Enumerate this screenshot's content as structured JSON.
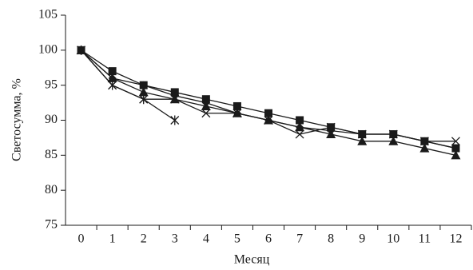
{
  "chart_data": {
    "type": "line",
    "categories": [
      "0",
      "1",
      "2",
      "3",
      "4",
      "5",
      "6",
      "7",
      "8",
      "9",
      "10",
      "11",
      "12"
    ],
    "series": [
      {
        "marker": "square",
        "color": "#1a1a1a",
        "values": [
          100,
          97,
          95,
          94,
          93,
          92,
          91,
          90,
          89,
          88,
          88,
          87,
          86
        ]
      },
      {
        "marker": "triangle",
        "color": "#1a1a1a",
        "values": [
          100,
          96,
          94,
          93,
          92,
          91,
          90,
          89,
          88,
          87,
          87,
          86,
          85
        ]
      },
      {
        "marker": "diamond",
        "color": "#1a1a1a",
        "values": [
          100,
          96,
          95,
          93.5,
          92.5,
          91,
          90,
          89,
          88.5,
          88,
          88,
          87,
          86
        ]
      },
      {
        "marker": "cross",
        "color": "#1a1a1a",
        "values": [
          100,
          95,
          93,
          93,
          91,
          91,
          90,
          88,
          89,
          88,
          88,
          87,
          87
        ]
      },
      {
        "marker": "asterisk",
        "color": "#1a1a1a",
        "values": [
          100,
          95,
          93,
          90,
          null,
          null,
          null,
          null,
          null,
          null,
          null,
          null,
          null
        ]
      }
    ],
    "ylim": [
      75,
      105
    ],
    "yticks": [
      75,
      80,
      85,
      90,
      95,
      100,
      105
    ],
    "xlabel": "Месяц",
    "ylabel": "Светосумма, %",
    "grid": false
  }
}
